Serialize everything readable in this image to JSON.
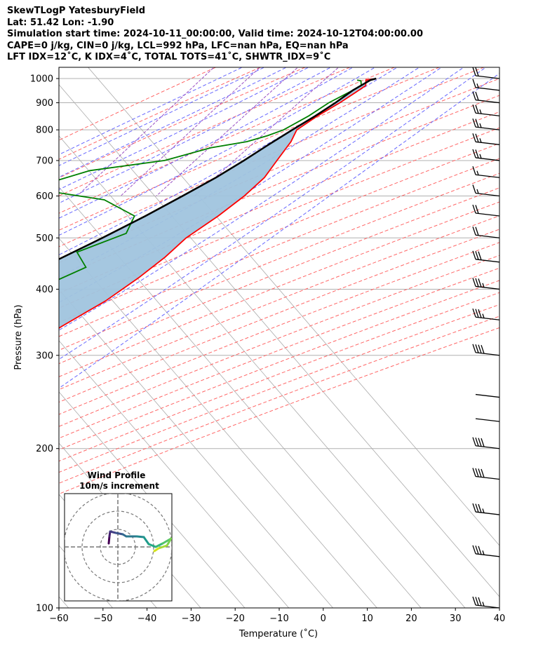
{
  "header": {
    "line1": "SkewTLogP YatesburyField",
    "line2": "Lat: 51.42   Lon: -1.90",
    "line3": "Simulation start time: 2024-10-11_00:00:00, Valid time: 2024-10-12T04:00:00.00",
    "line4": "CAPE=0 j/kg, CIN=0 j/kg, LCL=992 hPa, LFC=nan hPa, EQ=nan hPa",
    "line5": "LFT IDX=12˚C, K IDX=4˚C, TOTAL TOTS=41˚C, SHWTR_IDX=9˚C"
  },
  "colors": {
    "temperature": "#ff0000",
    "dewpoint": "#008000",
    "parcel": "#000000",
    "shade": "#a0c4de",
    "dry_adiabat": "#ff6666",
    "moist_adiabat": "#6666ff",
    "mixing_ratio": "#9a4fc4",
    "isotherm": "#aaaaaa"
  },
  "chart_data": {
    "type": "skewt",
    "xlabel": "Temperature (˚C)",
    "ylabel": "Pressure (hPa)",
    "xlim": [
      -60,
      40
    ],
    "ylim": [
      1050,
      100
    ],
    "xticks": [
      -60,
      -50,
      -40,
      -30,
      -20,
      -10,
      0,
      10,
      20,
      30,
      40
    ],
    "xtick_labels": [
      "−60",
      "−50",
      "−40",
      "−30",
      "−20",
      "−10",
      "0",
      "10",
      "20",
      "30",
      "40"
    ],
    "yticks": [
      100,
      200,
      300,
      400,
      500,
      600,
      700,
      800,
      900,
      1000
    ],
    "yscale": "log",
    "grid": true,
    "series": [
      {
        "key": "temperature",
        "points": [
          [
            1000,
            12
          ],
          [
            993,
            10
          ],
          [
            970,
            11
          ],
          [
            940,
            10
          ],
          [
            900,
            8.5
          ],
          [
            850,
            6
          ],
          [
            800,
            4
          ],
          [
            760,
            5
          ],
          [
            700,
            5.5
          ],
          [
            650,
            6
          ],
          [
            600,
            5
          ],
          [
            550,
            3
          ],
          [
            500,
            0
          ],
          [
            460,
            -1
          ],
          [
            420,
            -3
          ],
          [
            380,
            -6
          ],
          [
            340,
            -11
          ],
          [
            300,
            -15
          ],
          [
            270,
            -18
          ],
          [
            255,
            -19.5
          ],
          [
            240,
            -22
          ],
          [
            230,
            -22.5
          ],
          [
            220,
            -19.5
          ],
          [
            200,
            -18
          ],
          [
            180,
            -14
          ],
          [
            160,
            -9.5
          ],
          [
            150,
            -5
          ],
          [
            140,
            -1.5
          ],
          [
            130,
            0.5
          ],
          [
            120,
            2.5
          ],
          [
            110,
            5
          ],
          [
            100,
            7.5
          ]
        ]
      },
      {
        "key": "dewpoint",
        "points": [
          [
            993,
            8
          ],
          [
            990,
            9
          ],
          [
            970,
            10
          ],
          [
            950,
            9
          ],
          [
            900,
            6
          ],
          [
            850,
            4
          ],
          [
            800,
            1
          ],
          [
            780,
            -1.5
          ],
          [
            760,
            -5
          ],
          [
            740,
            -12
          ],
          [
            700,
            -20
          ],
          [
            670,
            -35
          ],
          [
            620,
            -45
          ],
          [
            590,
            -26
          ],
          [
            550,
            -16
          ],
          [
            510,
            -14.5
          ],
          [
            470,
            -22
          ],
          [
            440,
            -17
          ],
          [
            410,
            -22
          ],
          [
            370,
            -24
          ],
          [
            330,
            -24
          ],
          [
            300,
            -24
          ],
          [
            260,
            -14
          ],
          [
            240,
            -14
          ],
          [
            220,
            -14
          ],
          [
            200,
            -13
          ],
          [
            180,
            -11
          ],
          [
            165,
            -10
          ],
          [
            155,
            -9
          ],
          [
            150,
            -8.5
          ],
          [
            140,
            -10
          ],
          [
            130,
            -8.5
          ],
          [
            120,
            -3
          ],
          [
            110,
            1
          ],
          [
            100,
            6
          ]
        ]
      },
      {
        "key": "parcel",
        "points": [
          [
            1000,
            12
          ],
          [
            993,
            11
          ],
          [
            950,
            9
          ],
          [
            900,
            7.5
          ],
          [
            850,
            5.5
          ],
          [
            800,
            3
          ],
          [
            750,
            0.5
          ],
          [
            700,
            -2
          ],
          [
            650,
            -5
          ],
          [
            600,
            -9
          ],
          [
            550,
            -13.5
          ],
          [
            500,
            -19
          ],
          [
            450,
            -25.5
          ],
          [
            400,
            -33
          ],
          [
            350,
            -42
          ],
          [
            300,
            -52
          ],
          [
            250,
            -64
          ],
          [
            200,
            -79
          ],
          [
            150,
            -96
          ],
          [
            100,
            -120
          ]
        ]
      }
    ],
    "wind_barbs": {
      "pressures": [
        1000,
        950,
        900,
        850,
        800,
        750,
        700,
        650,
        600,
        550,
        500,
        450,
        400,
        350,
        300,
        250,
        225,
        200,
        175,
        150,
        125,
        100
      ],
      "note": "speeds in kt",
      "speed": [
        20,
        15,
        20,
        25,
        25,
        25,
        25,
        15,
        15,
        20,
        20,
        30,
        35,
        35,
        40,
        50,
        50,
        40,
        40,
        35,
        35,
        35
      ]
    },
    "inset": {
      "title": "Wind Profile",
      "subtitle": "10m/s increment"
    }
  }
}
